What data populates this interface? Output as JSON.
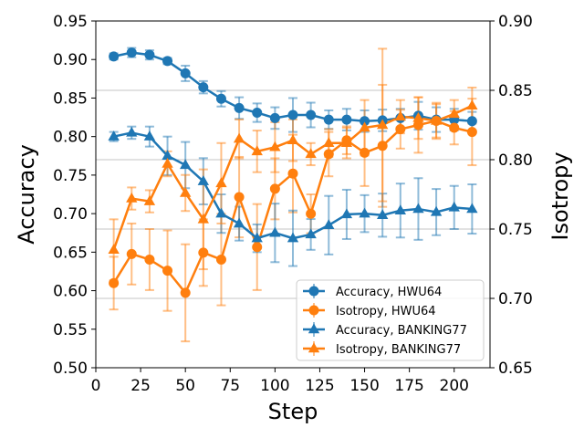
{
  "chart_data": {
    "type": "line",
    "title": "",
    "xlabel": "Step",
    "ylabel": "Accuracy",
    "y2label": "Isotropy",
    "xlim": [
      0,
      220
    ],
    "ylim": [
      0.5,
      0.95
    ],
    "y2lim": [
      0.65,
      0.9
    ],
    "xticks": [
      "0",
      "25",
      "50",
      "75",
      "100",
      "125",
      "150",
      "175",
      "200"
    ],
    "xtick_values": [
      0,
      25,
      50,
      75,
      100,
      125,
      150,
      175,
      200
    ],
    "yticks": [
      "0.50",
      "0.55",
      "0.60",
      "0.65",
      "0.70",
      "0.75",
      "0.80",
      "0.85",
      "0.90",
      "0.95"
    ],
    "ytick_values": [
      0.5,
      0.55,
      0.6,
      0.65,
      0.7,
      0.75,
      0.8,
      0.85,
      0.9,
      0.95
    ],
    "y2ticks": [
      "0.65",
      "0.70",
      "0.75",
      "0.80",
      "0.85",
      "0.90"
    ],
    "y2tick_values": [
      0.65,
      0.7,
      0.75,
      0.8,
      0.85,
      0.9
    ],
    "grid": "right-axis horizontal lines",
    "legend_position": "bottom-right",
    "x": [
      10,
      20,
      30,
      40,
      50,
      60,
      70,
      80,
      90,
      100,
      110,
      120,
      130,
      140,
      150,
      160,
      170,
      180,
      190,
      200,
      210
    ],
    "series": [
      {
        "name": "Accuracy, HWU64",
        "axis": "left",
        "color": "#1f77b4",
        "marker": "circle",
        "values": [
          0.904,
          0.909,
          0.906,
          0.898,
          0.882,
          0.864,
          0.849,
          0.837,
          0.831,
          0.824,
          0.828,
          0.828,
          0.822,
          0.822,
          0.82,
          0.821,
          0.824,
          0.827,
          0.822,
          0.822,
          0.82
        ],
        "errors": [
          0.004,
          0.006,
          0.006,
          0.004,
          0.01,
          0.008,
          0.01,
          0.014,
          0.012,
          0.014,
          0.022,
          0.016,
          0.012,
          0.014,
          0.014,
          0.014,
          0.012,
          0.018,
          0.016,
          0.014,
          0.012
        ]
      },
      {
        "name": "Isotropy,  HWU64",
        "axis": "right",
        "color": "#ff7f0e",
        "marker": "circle",
        "values": [
          0.711,
          0.732,
          0.728,
          0.72,
          0.704,
          0.733,
          0.728,
          0.773,
          0.737,
          0.779,
          0.79,
          0.761,
          0.804,
          0.814,
          0.805,
          0.81,
          0.822,
          0.825,
          0.828,
          0.823,
          0.82
        ],
        "errors": [
          0.019,
          0.022,
          0.022,
          0.029,
          0.035,
          0.024,
          0.033,
          0.029,
          0.031,
          0.022,
          0.028,
          0.014,
          0.016,
          0.01,
          0.024,
          0.044,
          0.014,
          0.02,
          0.012,
          0.012,
          0.024
        ]
      },
      {
        "name": "Accuracy, BANKING77",
        "axis": "left",
        "color": "#1f77b4",
        "marker": "triangle",
        "values": [
          0.8,
          0.805,
          0.8,
          0.775,
          0.763,
          0.742,
          0.7,
          0.687,
          0.668,
          0.675,
          0.668,
          0.673,
          0.685,
          0.699,
          0.7,
          0.698,
          0.704,
          0.706,
          0.702,
          0.708,
          0.706
        ],
        "errors": [
          0.006,
          0.008,
          0.013,
          0.025,
          0.03,
          0.03,
          0.025,
          0.022,
          0.018,
          0.038,
          0.036,
          0.02,
          0.038,
          0.032,
          0.024,
          0.028,
          0.035,
          0.04,
          0.03,
          0.028,
          0.032
        ]
      },
      {
        "name": "Isotropy,  BANKING77",
        "axis": "right",
        "color": "#ff7f0e",
        "marker": "triangle",
        "values": [
          0.735,
          0.772,
          0.77,
          0.797,
          0.776,
          0.757,
          0.783,
          0.815,
          0.806,
          0.809,
          0.814,
          0.804,
          0.812,
          0.812,
          0.823,
          0.825,
          0.831,
          0.83,
          0.828,
          0.833,
          0.839
        ],
        "errors": [
          0.022,
          0.008,
          0.008,
          0.009,
          0.013,
          0.036,
          0.029,
          0.014,
          0.015,
          0.018,
          0.015,
          0.008,
          0.01,
          0.011,
          0.02,
          0.055,
          0.012,
          0.015,
          0.013,
          0.01,
          0.013
        ]
      }
    ]
  }
}
